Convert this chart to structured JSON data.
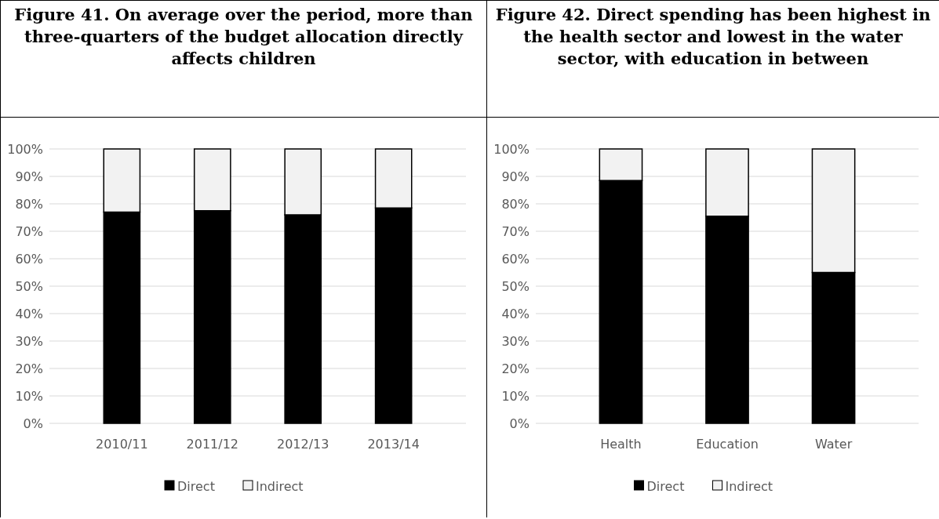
{
  "chart_data": [
    {
      "type": "bar",
      "title": "Figure 41. On average over the period, more than three-quarters of the budget allocation directly affects children",
      "categories": [
        "2010/11",
        "2011/12",
        "2012/13",
        "2013/14"
      ],
      "stacked": true,
      "series": [
        {
          "name": "Direct",
          "color": "#000000",
          "values": [
            77,
            77.5,
            76,
            78.5
          ]
        },
        {
          "name": "Indirect",
          "color": "#f2f2f2",
          "values": [
            23,
            22.5,
            24,
            21.5
          ]
        }
      ],
      "ylim": [
        0,
        100
      ],
      "yticks": [
        {
          "value": 0,
          "label": "0%"
        },
        {
          "value": 10,
          "label": "10%"
        },
        {
          "value": 20,
          "label": "20%"
        },
        {
          "value": 30,
          "label": "30%"
        },
        {
          "value": 40,
          "label": "40%"
        },
        {
          "value": 50,
          "label": "50%"
        },
        {
          "value": 60,
          "label": "60%"
        },
        {
          "value": 70,
          "label": "70%"
        },
        {
          "value": 80,
          "label": "80%"
        },
        {
          "value": 90,
          "label": "90%"
        },
        {
          "value": 100,
          "label": "100%"
        }
      ],
      "grid": "y",
      "legend": "bottom"
    },
    {
      "type": "bar",
      "title": "Figure 42. Direct spending has been highest in the health sector and lowest in the water sector, with education in between",
      "categories": [
        "Health",
        "Education",
        "Water"
      ],
      "stacked": true,
      "series": [
        {
          "name": "Direct",
          "color": "#000000",
          "values": [
            88.5,
            75.5,
            55
          ]
        },
        {
          "name": "Indirect",
          "color": "#f2f2f2",
          "values": [
            11.5,
            24.5,
            45
          ]
        }
      ],
      "ylim": [
        0,
        100
      ],
      "yticks": [
        {
          "value": 0,
          "label": "0%"
        },
        {
          "value": 10,
          "label": "10%"
        },
        {
          "value": 20,
          "label": "20%"
        },
        {
          "value": 30,
          "label": "30%"
        },
        {
          "value": 40,
          "label": "40%"
        },
        {
          "value": 50,
          "label": "50%"
        },
        {
          "value": 60,
          "label": "60%"
        },
        {
          "value": 70,
          "label": "70%"
        },
        {
          "value": 80,
          "label": "80%"
        },
        {
          "value": 90,
          "label": "90%"
        },
        {
          "value": 100,
          "label": "100%"
        }
      ],
      "grid": "y",
      "legend": "bottom"
    }
  ]
}
